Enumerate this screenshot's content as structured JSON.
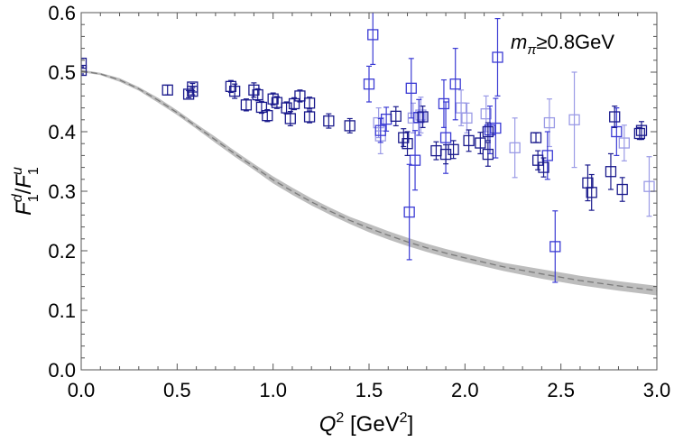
{
  "chart_data": {
    "type": "scatter",
    "title": "",
    "xlim": [
      0.0,
      3.0
    ],
    "ylim": [
      0.0,
      0.6
    ],
    "x_ticks": [
      0.0,
      0.5,
      1.0,
      1.5,
      2.0,
      2.5,
      3.0
    ],
    "y_ticks": [
      0.0,
      0.1,
      0.2,
      0.3,
      0.4,
      0.5,
      0.6
    ],
    "x_tick_labels": [
      "0.0",
      "0.5",
      "1.0",
      "1.5",
      "2.0",
      "2.5",
      "3.0"
    ],
    "y_tick_labels": [
      "0.0",
      "0.1",
      "0.2",
      "0.3",
      "0.4",
      "0.5",
      "0.6"
    ],
    "xlabel": {
      "main": "Q",
      "sup": "2",
      "rest": " [GeV",
      "sup2": "2",
      "close": "]"
    },
    "ylabel": {
      "num": "F",
      "num_sup": "d",
      "num_sub": "1",
      "slash": "/",
      "den": "F",
      "den_sup": "u",
      "den_sub": "1"
    },
    "annotation": {
      "var": "m",
      "sub": "π",
      "rest": "≥0.8GeV"
    },
    "grid": false,
    "colors": {
      "dark": "#1a1a8c",
      "mid": "#3b3bd4",
      "light": "#9b9be6",
      "band": "#bdbdbd",
      "dashed": "#7a7a7a"
    },
    "curve": {
      "x": [
        0.0,
        0.1,
        0.2,
        0.3,
        0.4,
        0.5,
        0.6,
        0.7,
        0.8,
        0.9,
        1.0,
        1.1,
        1.2,
        1.3,
        1.4,
        1.5,
        1.6,
        1.7,
        1.8,
        1.9,
        2.0,
        2.2,
        2.4,
        2.6,
        2.8,
        3.0
      ],
      "y": [
        0.502,
        0.497,
        0.487,
        0.472,
        0.453,
        0.432,
        0.409,
        0.386,
        0.363,
        0.341,
        0.319,
        0.3,
        0.282,
        0.266,
        0.251,
        0.238,
        0.226,
        0.215,
        0.205,
        0.196,
        0.188,
        0.173,
        0.161,
        0.15,
        0.141,
        0.133
      ],
      "band_halfwidth": [
        0.002,
        0.002,
        0.003,
        0.003,
        0.004,
        0.004,
        0.004,
        0.005,
        0.005,
        0.005,
        0.006,
        0.006,
        0.006,
        0.006,
        0.006,
        0.007,
        0.007,
        0.007,
        0.007,
        0.007,
        0.007,
        0.007,
        0.008,
        0.008,
        0.008,
        0.008
      ]
    },
    "series": [
      {
        "name": "dark",
        "color_key": "dark",
        "points": [
          [
            0.0,
            0.503,
            0.006
          ],
          [
            0.0,
            0.515,
            0.008
          ],
          [
            0.45,
            0.47,
            0.008
          ],
          [
            0.56,
            0.463,
            0.006
          ],
          [
            0.58,
            0.468,
            0.006
          ],
          [
            0.58,
            0.475,
            0.006
          ],
          [
            0.78,
            0.476,
            0.01
          ],
          [
            0.8,
            0.468,
            0.012
          ],
          [
            0.86,
            0.445,
            0.01
          ],
          [
            0.9,
            0.47,
            0.012
          ],
          [
            0.92,
            0.462,
            0.01
          ],
          [
            0.94,
            0.441,
            0.01
          ],
          [
            0.97,
            0.427,
            0.01
          ],
          [
            1.0,
            0.455,
            0.01
          ],
          [
            1.02,
            0.449,
            0.01
          ],
          [
            1.07,
            0.44,
            0.01
          ],
          [
            1.09,
            0.422,
            0.012
          ],
          [
            1.11,
            0.447,
            0.01
          ],
          [
            1.14,
            0.46,
            0.01
          ],
          [
            1.19,
            0.448,
            0.01
          ],
          [
            1.19,
            0.425,
            0.01
          ],
          [
            1.29,
            0.418,
            0.012
          ],
          [
            1.4,
            0.41,
            0.012
          ],
          [
            1.64,
            0.426,
            0.016
          ],
          [
            1.68,
            0.39,
            0.015
          ],
          [
            1.7,
            0.38,
            0.02
          ],
          [
            1.78,
            0.425,
            0.018
          ],
          [
            1.85,
            0.368,
            0.015
          ],
          [
            1.9,
            0.362,
            0.016
          ],
          [
            1.94,
            0.37,
            0.015
          ],
          [
            2.02,
            0.385,
            0.018
          ],
          [
            2.08,
            0.381,
            0.018
          ],
          [
            2.12,
            0.362,
            0.02
          ],
          [
            2.12,
            0.4,
            0.015
          ],
          [
            2.37,
            0.39,
            0.008
          ],
          [
            2.38,
            0.352,
            0.016
          ],
          [
            2.41,
            0.34,
            0.016
          ],
          [
            2.64,
            0.314,
            0.03
          ],
          [
            2.66,
            0.298,
            0.03
          ],
          [
            2.76,
            0.333,
            0.03
          ],
          [
            2.78,
            0.425,
            0.018
          ],
          [
            2.82,
            0.303,
            0.02
          ],
          [
            2.91,
            0.397,
            0.01
          ],
          [
            2.92,
            0.402,
            0.015
          ]
        ]
      },
      {
        "name": "mid",
        "color_key": "mid",
        "points": [
          [
            1.5,
            0.48,
            0.03
          ],
          [
            1.52,
            0.563,
            0.05
          ],
          [
            1.56,
            0.402,
            0.02
          ],
          [
            1.59,
            0.421,
            0.02
          ],
          [
            1.71,
            0.265,
            0.08
          ],
          [
            1.72,
            0.473,
            0.05
          ],
          [
            1.74,
            0.352,
            0.05
          ],
          [
            1.76,
            0.424,
            0.03
          ],
          [
            1.89,
            0.447,
            0.04
          ],
          [
            1.9,
            0.39,
            0.06
          ],
          [
            1.95,
            0.48,
            0.06
          ],
          [
            2.13,
            0.403,
            0.04
          ],
          [
            2.16,
            0.406,
            0.05
          ],
          [
            2.17,
            0.525,
            0.065
          ],
          [
            2.43,
            0.36,
            0.04
          ],
          [
            2.47,
            0.207,
            0.06
          ],
          [
            2.79,
            0.4,
            0.04
          ]
        ]
      },
      {
        "name": "light",
        "color_key": "light",
        "points": [
          [
            1.55,
            0.415,
            0.025
          ],
          [
            1.56,
            0.393,
            0.03
          ],
          [
            1.73,
            0.423,
            0.025
          ],
          [
            1.77,
            0.428,
            0.03
          ],
          [
            1.98,
            0.44,
            0.03
          ],
          [
            2.01,
            0.423,
            0.025
          ],
          [
            2.11,
            0.43,
            0.03
          ],
          [
            2.26,
            0.373,
            0.05
          ],
          [
            2.44,
            0.415,
            0.04
          ],
          [
            2.57,
            0.42,
            0.08
          ],
          [
            2.83,
            0.381,
            0.03
          ],
          [
            2.96,
            0.308,
            0.05
          ]
        ]
      }
    ]
  }
}
